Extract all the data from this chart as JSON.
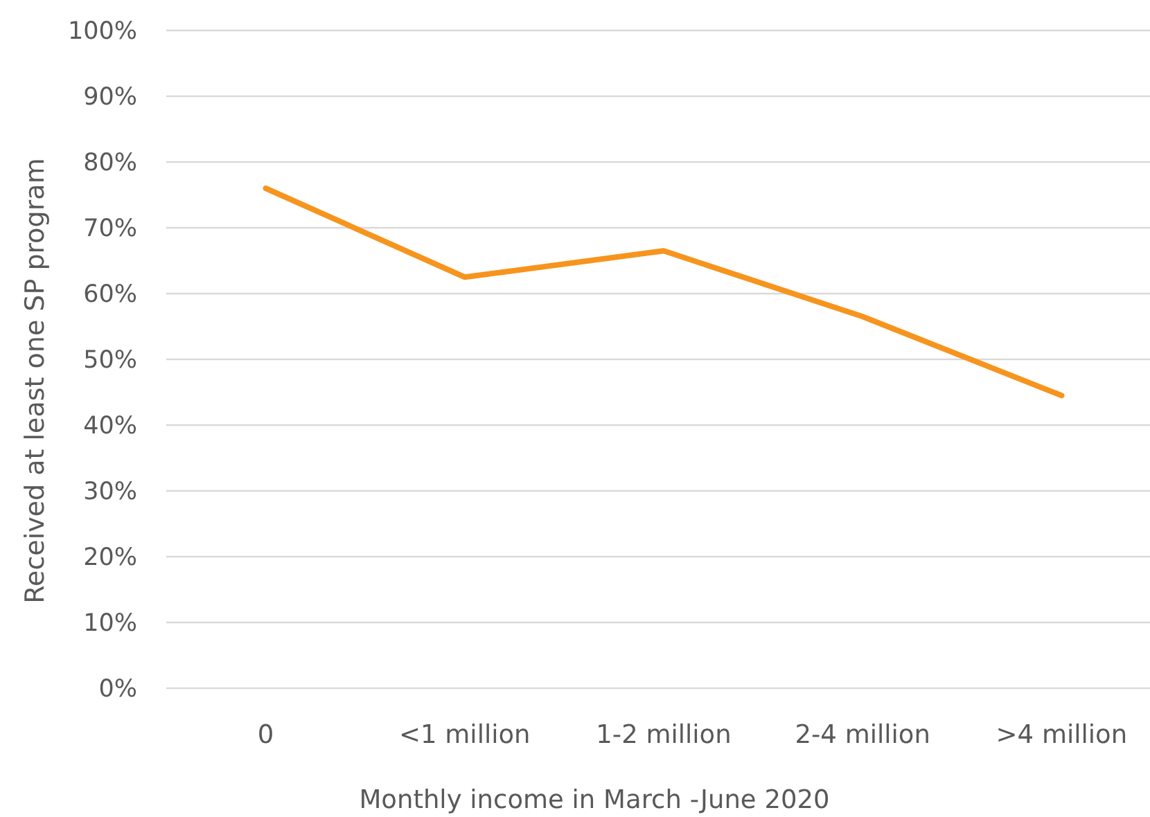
{
  "chart_data": {
    "type": "line",
    "xlabel": "Monthly income in March -June 2020",
    "ylabel": "Received at least one SP program",
    "categories": [
      "0",
      "<1 million",
      "1-2 million",
      "2-4 million",
      ">4 million"
    ],
    "series": [
      {
        "color": "#f7941d",
        "values": [
          76,
          62.5,
          66.5,
          56.5,
          44.5
        ]
      }
    ],
    "ylim": [
      0,
      100
    ],
    "yticks": [
      {
        "value": 0,
        "label": "0%"
      },
      {
        "value": 10,
        "label": "10%"
      },
      {
        "value": 20,
        "label": "20%"
      },
      {
        "value": 30,
        "label": "30%"
      },
      {
        "value": 40,
        "label": "40%"
      },
      {
        "value": 50,
        "label": "50%"
      },
      {
        "value": 60,
        "label": "60%"
      },
      {
        "value": 70,
        "label": "70%"
      },
      {
        "value": 80,
        "label": "80%"
      },
      {
        "value": 90,
        "label": "90%"
      },
      {
        "value": 100,
        "label": "100%"
      }
    ],
    "grid": "y",
    "marker": "none",
    "line_style": "solid"
  }
}
